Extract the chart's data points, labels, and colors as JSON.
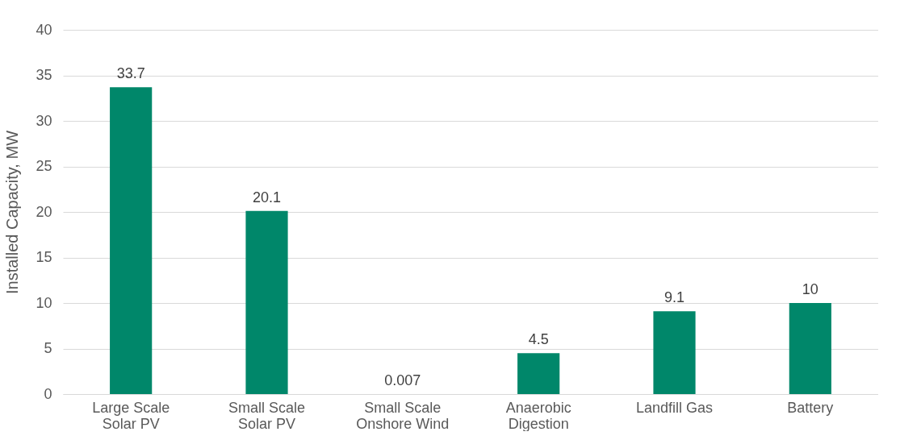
{
  "chart_data": {
    "type": "bar",
    "ylabel": "Installed Capacity, MW",
    "categories": [
      "Large Scale Solar PV",
      "Small Scale Solar PV",
      "Small Scale Onshore Wind",
      "Anaerobic Digestion",
      "Landfill Gas",
      "Battery"
    ],
    "values": [
      33.7,
      20.1,
      0.007,
      4.5,
      9.1,
      10
    ],
    "color": "#00876a",
    "ylim": [
      0,
      40
    ],
    "yticks": [
      0,
      5,
      10,
      15,
      20,
      25,
      30,
      35,
      40
    ],
    "grid": "y",
    "data_labels": true
  }
}
